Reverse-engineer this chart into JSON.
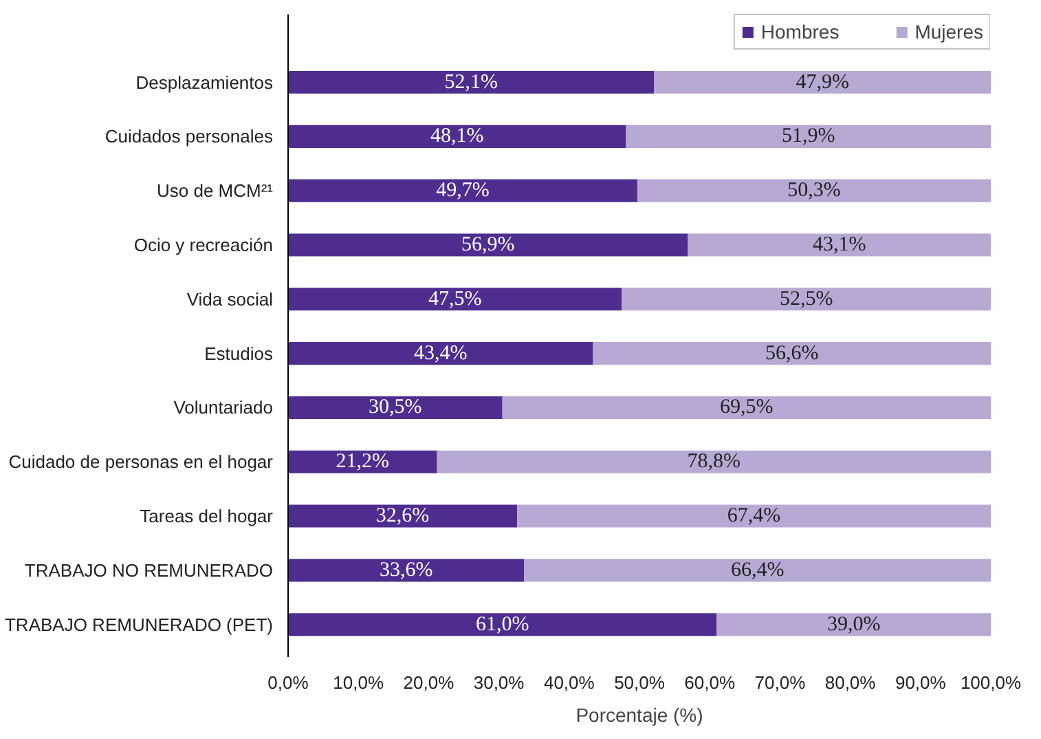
{
  "chart_data": {
    "type": "bar",
    "orientation": "horizontal",
    "stacked": true,
    "xlabel": "Porcentaje (%)",
    "categories": [
      "Desplazamientos",
      "Cuidados personales",
      "Uso de MCM²¹",
      "Ocio y recreación",
      "Vida social",
      "Estudios",
      "Voluntariado",
      "Cuidado de personas en el hogar",
      "Tareas del hogar",
      "TRABAJO NO REMUNERADO",
      "TRABAJO REMUNERADO (PET)"
    ],
    "series": [
      {
        "name": "Hombres",
        "color": "#4f2d8f",
        "values": [
          52.1,
          48.1,
          49.7,
          56.9,
          47.5,
          43.4,
          30.5,
          21.2,
          32.6,
          33.6,
          61.0
        ],
        "value_labels": [
          "52,1%",
          "48,1%",
          "49,7%",
          "56,9%",
          "47,5%",
          "43,4%",
          "30,5%",
          "21,2%",
          "32,6%",
          "33,6%",
          "61,0%"
        ]
      },
      {
        "name": "Mujeres",
        "color": "#b8a9d4",
        "values": [
          47.9,
          51.9,
          50.3,
          43.1,
          52.5,
          56.6,
          69.5,
          78.8,
          67.4,
          66.4,
          39.0
        ],
        "value_labels": [
          "47,9%",
          "51,9%",
          "50,3%",
          "43,1%",
          "52,5%",
          "56,6%",
          "69,5%",
          "78,8%",
          "67,4%",
          "66,4%",
          "39,0%"
        ]
      }
    ],
    "xlim": [
      0,
      100
    ],
    "xticks": [
      {
        "value": 0,
        "label": "0,0%"
      },
      {
        "value": 10,
        "label": "10,0%"
      },
      {
        "value": 20,
        "label": "20,0%"
      },
      {
        "value": 30,
        "label": "30,0%"
      },
      {
        "value": 40,
        "label": "40,0%"
      },
      {
        "value": 50,
        "label": "50,0%"
      },
      {
        "value": 60,
        "label": "60,0%"
      },
      {
        "value": 70,
        "label": "70,0%"
      },
      {
        "value": 80,
        "label": "80,0%"
      },
      {
        "value": 90,
        "label": "90,0%"
      },
      {
        "value": 100,
        "label": "100,0%"
      }
    ],
    "legend": "top right"
  }
}
